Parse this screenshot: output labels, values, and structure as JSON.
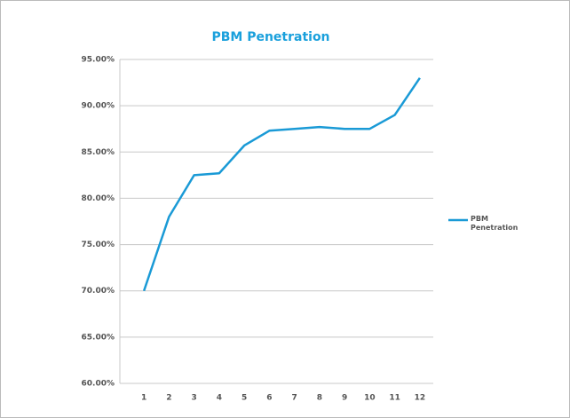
{
  "chart_data": {
    "type": "line",
    "title": "PBM Penetration",
    "categories": [
      "1",
      "2",
      "3",
      "4",
      "5",
      "6",
      "7",
      "8",
      "9",
      "10",
      "11",
      "12"
    ],
    "series": [
      {
        "name": "PBM Penetration",
        "color": "#1a9ad6",
        "values": [
          70.0,
          78.0,
          82.5,
          82.7,
          85.7,
          87.3,
          87.5,
          87.7,
          87.5,
          87.5,
          89.0,
          93.0
        ]
      }
    ],
    "ylim": [
      60,
      95
    ],
    "yticks": [
      {
        "value": 60,
        "label": "60.00%"
      },
      {
        "value": 65,
        "label": "65.00%"
      },
      {
        "value": 70,
        "label": "70.00%"
      },
      {
        "value": 75,
        "label": "75.00%"
      },
      {
        "value": 80,
        "label": "80.00%"
      },
      {
        "value": 85,
        "label": "85.00%"
      },
      {
        "value": 90,
        "label": "90.00%"
      },
      {
        "value": 95,
        "label": "95.00%"
      }
    ],
    "grid": true,
    "legend": "right"
  }
}
